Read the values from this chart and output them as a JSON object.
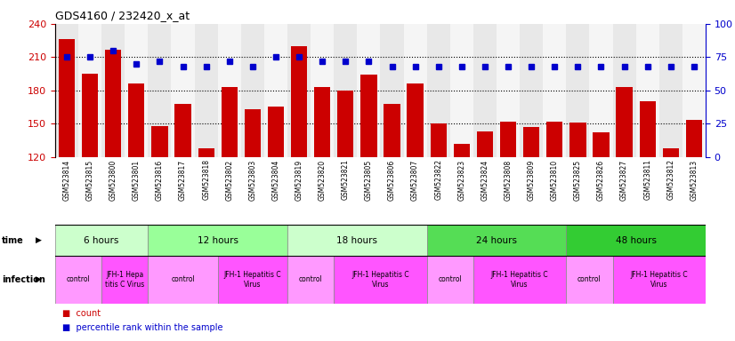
{
  "title": "GDS4160 / 232420_x_at",
  "samples": [
    "GSM523814",
    "GSM523815",
    "GSM523800",
    "GSM523801",
    "GSM523816",
    "GSM523817",
    "GSM523818",
    "GSM523802",
    "GSM523803",
    "GSM523804",
    "GSM523819",
    "GSM523820",
    "GSM523821",
    "GSM523805",
    "GSM523806",
    "GSM523807",
    "GSM523822",
    "GSM523823",
    "GSM523824",
    "GSM523808",
    "GSM523809",
    "GSM523810",
    "GSM523825",
    "GSM523826",
    "GSM523827",
    "GSM523811",
    "GSM523812",
    "GSM523813"
  ],
  "counts": [
    226,
    195,
    217,
    186,
    148,
    168,
    128,
    183,
    163,
    165,
    220,
    183,
    180,
    194,
    168,
    186,
    150,
    132,
    143,
    152,
    147,
    152,
    151,
    142,
    183,
    170,
    128,
    153
  ],
  "percentile_ranks": [
    75,
    75,
    80,
    70,
    72,
    68,
    68,
    72,
    68,
    75,
    75,
    72,
    72,
    72,
    68,
    68,
    68,
    68,
    68,
    68,
    68,
    68,
    68,
    68,
    68,
    68,
    68,
    68
  ],
  "bar_color": "#cc0000",
  "dot_color": "#0000cc",
  "ylim_left": [
    120,
    240
  ],
  "ylim_right": [
    0,
    100
  ],
  "yticks_left": [
    120,
    150,
    180,
    210,
    240
  ],
  "yticks_right": [
    0,
    25,
    50,
    75,
    100
  ],
  "col_bg_even": "#e8e8e8",
  "col_bg_odd": "#f5f5f5",
  "time_groups": [
    {
      "label": "6 hours",
      "start": 0,
      "end": 4,
      "color": "#ccffcc"
    },
    {
      "label": "12 hours",
      "start": 4,
      "end": 10,
      "color": "#99ff99"
    },
    {
      "label": "18 hours",
      "start": 10,
      "end": 16,
      "color": "#ccffcc"
    },
    {
      "label": "24 hours",
      "start": 16,
      "end": 22,
      "color": "#55dd55"
    },
    {
      "label": "48 hours",
      "start": 22,
      "end": 28,
      "color": "#33cc33"
    }
  ],
  "infection_groups": [
    {
      "label": "control",
      "start": 0,
      "end": 2,
      "ctrl": true
    },
    {
      "label": "JFH-1 Hepa\ntitis C Virus",
      "start": 2,
      "end": 4,
      "ctrl": false
    },
    {
      "label": "control",
      "start": 4,
      "end": 7,
      "ctrl": true
    },
    {
      "label": "JFH-1 Hepatitis C\nVirus",
      "start": 7,
      "end": 10,
      "ctrl": false
    },
    {
      "label": "control",
      "start": 10,
      "end": 12,
      "ctrl": true
    },
    {
      "label": "JFH-1 Hepatitis C\nVirus",
      "start": 12,
      "end": 16,
      "ctrl": false
    },
    {
      "label": "control",
      "start": 16,
      "end": 18,
      "ctrl": true
    },
    {
      "label": "JFH-1 Hepatitis C\nVirus",
      "start": 18,
      "end": 22,
      "ctrl": false
    },
    {
      "label": "control",
      "start": 22,
      "end": 24,
      "ctrl": true
    },
    {
      "label": "JFH-1 Hepatitis C\nVirus",
      "start": 24,
      "end": 28,
      "ctrl": false
    }
  ],
  "ctrl_color": "#ff99ff",
  "virus_color": "#ff55ff",
  "legend_count_color": "#cc0000",
  "legend_pct_color": "#0000cc"
}
